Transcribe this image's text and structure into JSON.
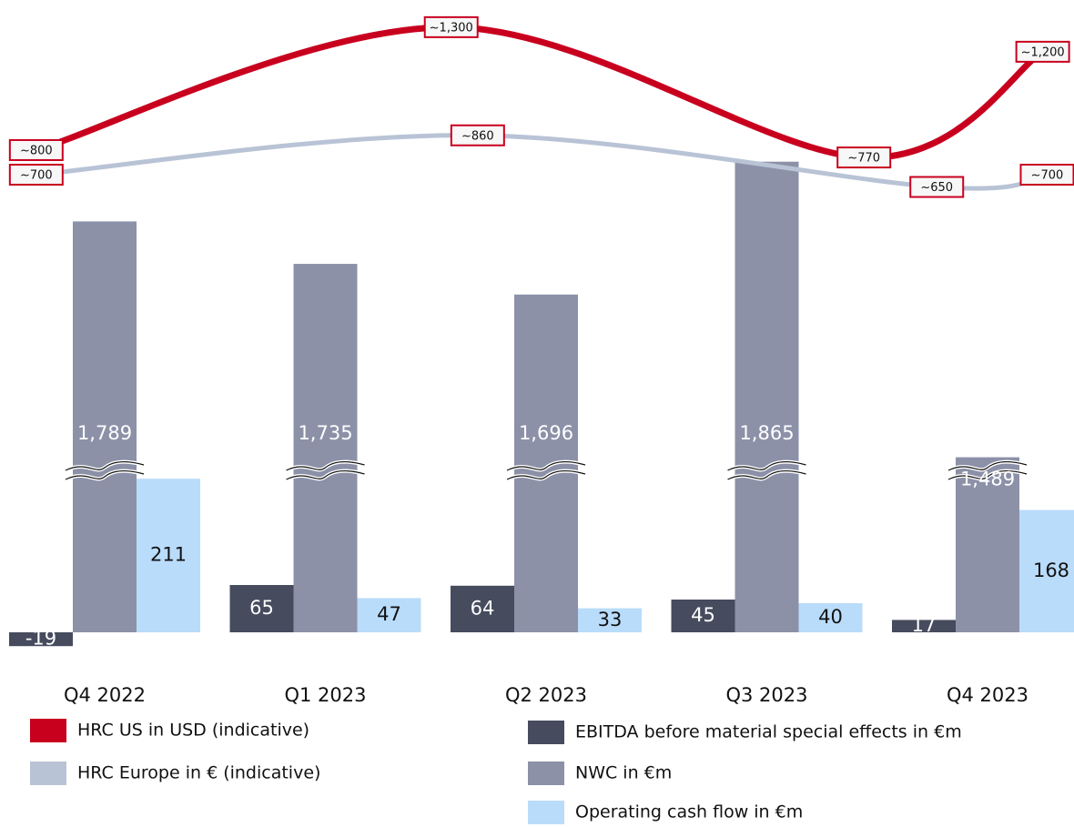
{
  "chart_data": {
    "type": "bar",
    "categories": [
      "Q4 2022",
      "Q1 2023",
      "Q2 2023",
      "Q3 2023",
      "Q4 2023"
    ],
    "ylim": [
      -40,
      1900
    ],
    "ybreak": [
      220,
      1470
    ],
    "y2lim": [
      -1280,
      1355
    ],
    "xlim": [
      -0.5,
      4.5
    ],
    "series": [
      {
        "name": "EBITDA before material special effects in €m",
        "type": "bar",
        "color": "#464c5e",
        "values": [
          -19,
          65,
          64,
          45,
          17
        ]
      },
      {
        "name": "NWC in €m",
        "type": "bar",
        "color": "#8c91a8",
        "values": [
          1789,
          1735,
          1696,
          1865,
          1489
        ],
        "value_labels": [
          "1,789",
          "1,735",
          "1,696",
          "1,865",
          "1,489"
        ]
      },
      {
        "name": "Operating cash flow in €m",
        "type": "bar",
        "color": "#b9dcfa",
        "values": [
          211,
          47,
          33,
          40,
          168
        ]
      },
      {
        "name": "HRC US in USD (indicative)",
        "type": "line",
        "axis": "y2",
        "color": "#c8001e",
        "x": [
          -0.31,
          1.57,
          3.44,
          4.25
        ],
        "values": [
          800,
          1300,
          770,
          1200
        ],
        "value_labels": [
          "~800",
          "~1,300",
          "~770",
          "~1,200"
        ]
      },
      {
        "name": "HRC Europe in € (indicative)",
        "type": "line",
        "axis": "y2",
        "color": "#b9c3d6",
        "x": [
          -0.31,
          1.69,
          3.77,
          4.27
        ],
        "values": [
          700,
          860,
          650,
          700
        ],
        "value_labels": [
          "~700",
          "~860",
          "~650",
          "~700"
        ]
      }
    ]
  }
}
